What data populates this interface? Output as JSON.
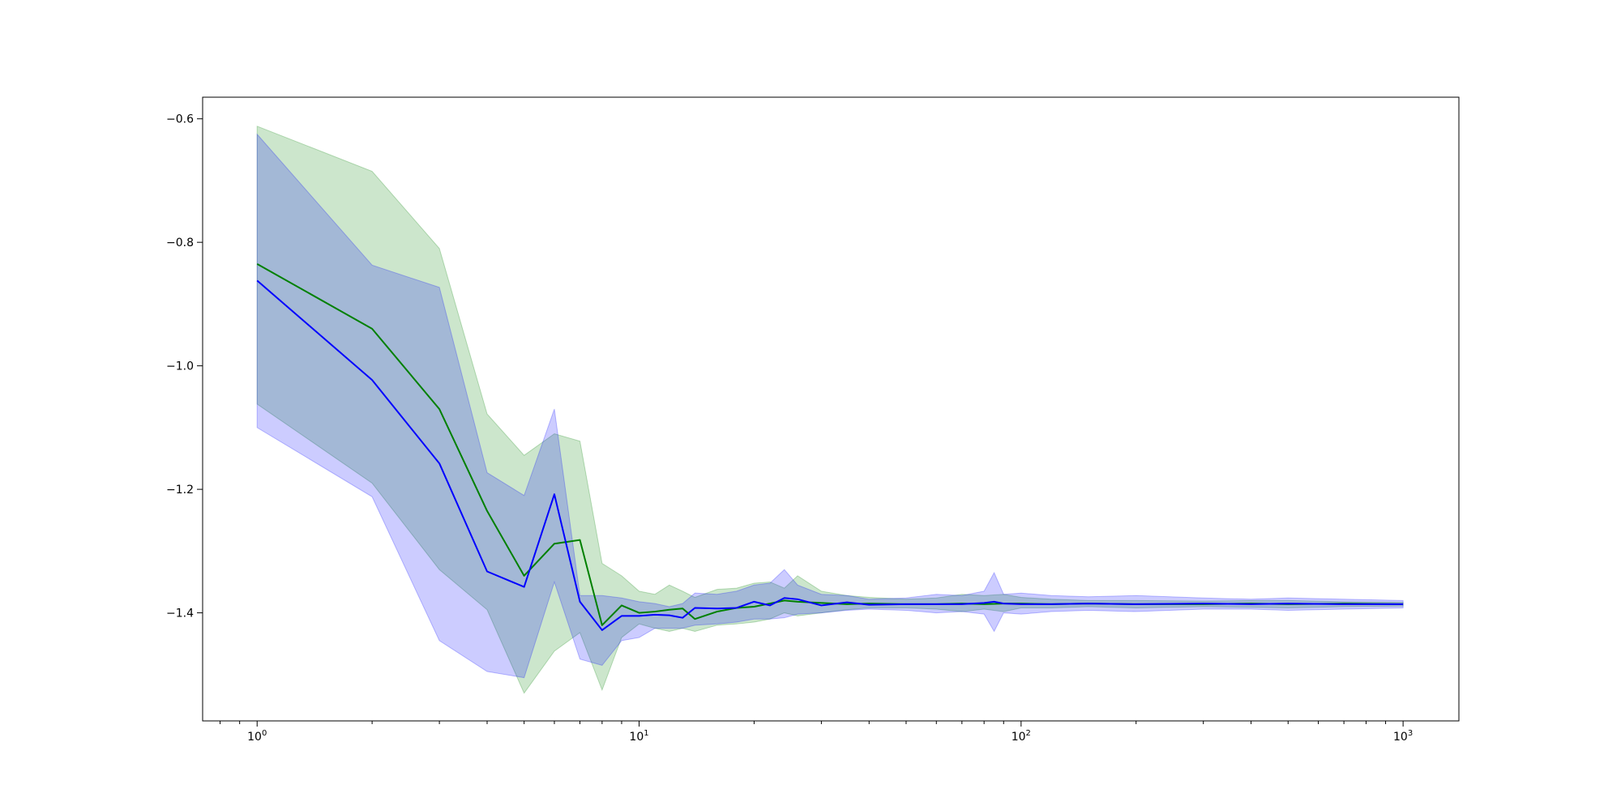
{
  "chart_data": {
    "type": "line",
    "title": "",
    "xlabel": "",
    "ylabel": "",
    "xscale": "log",
    "xlim": [
      0.72,
      1400
    ],
    "ylim": [
      -1.575,
      -0.565
    ],
    "grid": false,
    "legend": "none",
    "x_tick_labels": [
      {
        "value": 1,
        "base": "10",
        "exp": "0"
      },
      {
        "value": 10,
        "base": "10",
        "exp": "1"
      },
      {
        "value": 100,
        "base": "10",
        "exp": "2"
      },
      {
        "value": 1000,
        "base": "10",
        "exp": "3"
      }
    ],
    "y_ticks": [
      -0.6,
      -0.8,
      -1.0,
      -1.2,
      -1.4
    ],
    "y_tick_labels": [
      "−0.6",
      "−0.8",
      "−1.0",
      "−1.2",
      "−1.4"
    ],
    "series": [
      {
        "color": "#008000",
        "band_color": "#008000",
        "band_opacity": 0.2,
        "x": [
          1,
          2,
          3,
          4,
          5,
          6,
          7,
          8,
          9,
          10,
          11,
          12,
          13,
          14,
          16,
          18,
          20,
          22,
          24,
          26,
          30,
          35,
          40,
          50,
          60,
          70,
          80,
          90,
          100,
          120,
          150,
          200,
          300,
          400,
          500,
          700,
          1000
        ],
        "mean": [
          -0.835,
          -0.94,
          -1.07,
          -1.235,
          -1.34,
          -1.288,
          -1.282,
          -1.42,
          -1.388,
          -1.4,
          -1.398,
          -1.395,
          -1.393,
          -1.41,
          -1.398,
          -1.392,
          -1.39,
          -1.385,
          -1.38,
          -1.382,
          -1.384,
          -1.386,
          -1.385,
          -1.386,
          -1.386,
          -1.385,
          -1.386,
          -1.385,
          -1.385,
          -1.386,
          -1.385,
          -1.386,
          -1.386,
          -1.385,
          -1.386,
          -1.385,
          -1.386
        ],
        "upper": [
          -0.612,
          -0.685,
          -0.81,
          -1.078,
          -1.145,
          -1.11,
          -1.122,
          -1.32,
          -1.34,
          -1.365,
          -1.37,
          -1.355,
          -1.365,
          -1.375,
          -1.362,
          -1.36,
          -1.352,
          -1.35,
          -1.36,
          -1.34,
          -1.365,
          -1.372,
          -1.375,
          -1.378,
          -1.376,
          -1.37,
          -1.372,
          -1.37,
          -1.375,
          -1.378,
          -1.38,
          -1.38,
          -1.381,
          -1.38,
          -1.38,
          -1.382,
          -1.383
        ],
        "lower": [
          -1.062,
          -1.19,
          -1.33,
          -1.395,
          -1.53,
          -1.462,
          -1.432,
          -1.525,
          -1.44,
          -1.418,
          -1.425,
          -1.43,
          -1.425,
          -1.43,
          -1.42,
          -1.418,
          -1.415,
          -1.41,
          -1.4,
          -1.405,
          -1.4,
          -1.395,
          -1.392,
          -1.392,
          -1.394,
          -1.398,
          -1.394,
          -1.398,
          -1.392,
          -1.392,
          -1.39,
          -1.392,
          -1.39,
          -1.391,
          -1.392,
          -1.39,
          -1.389
        ]
      },
      {
        "color": "#0000ff",
        "band_color": "#0000ff",
        "band_opacity": 0.2,
        "x": [
          1,
          2,
          3,
          4,
          5,
          6,
          7,
          8,
          9,
          10,
          11,
          12,
          13,
          14,
          16,
          18,
          20,
          22,
          24,
          26,
          30,
          35,
          40,
          50,
          60,
          70,
          80,
          85,
          90,
          100,
          120,
          150,
          200,
          300,
          400,
          500,
          700,
          1000
        ],
        "mean": [
          -0.862,
          -1.023,
          -1.158,
          -1.333,
          -1.358,
          -1.208,
          -1.382,
          -1.428,
          -1.405,
          -1.405,
          -1.403,
          -1.404,
          -1.408,
          -1.392,
          -1.393,
          -1.392,
          -1.382,
          -1.388,
          -1.376,
          -1.378,
          -1.388,
          -1.383,
          -1.387,
          -1.386,
          -1.386,
          -1.386,
          -1.384,
          -1.382,
          -1.385,
          -1.386,
          -1.386,
          -1.385,
          -1.386,
          -1.385,
          -1.386,
          -1.385,
          -1.386,
          -1.386
        ],
        "upper": [
          -0.625,
          -0.837,
          -0.873,
          -1.173,
          -1.21,
          -1.07,
          -1.372,
          -1.372,
          -1.376,
          -1.382,
          -1.385,
          -1.39,
          -1.385,
          -1.368,
          -1.37,
          -1.365,
          -1.355,
          -1.352,
          -1.33,
          -1.355,
          -1.37,
          -1.372,
          -1.378,
          -1.376,
          -1.37,
          -1.372,
          -1.365,
          -1.335,
          -1.37,
          -1.368,
          -1.372,
          -1.374,
          -1.372,
          -1.376,
          -1.378,
          -1.376,
          -1.378,
          -1.38
        ],
        "lower": [
          -1.1,
          -1.212,
          -1.445,
          -1.495,
          -1.505,
          -1.35,
          -1.475,
          -1.485,
          -1.445,
          -1.44,
          -1.425,
          -1.425,
          -1.425,
          -1.42,
          -1.418,
          -1.415,
          -1.41,
          -1.41,
          -1.408,
          -1.402,
          -1.4,
          -1.396,
          -1.394,
          -1.396,
          -1.4,
          -1.398,
          -1.402,
          -1.43,
          -1.4,
          -1.402,
          -1.398,
          -1.396,
          -1.398,
          -1.394,
          -1.394,
          -1.396,
          -1.394,
          -1.392
        ]
      }
    ]
  }
}
